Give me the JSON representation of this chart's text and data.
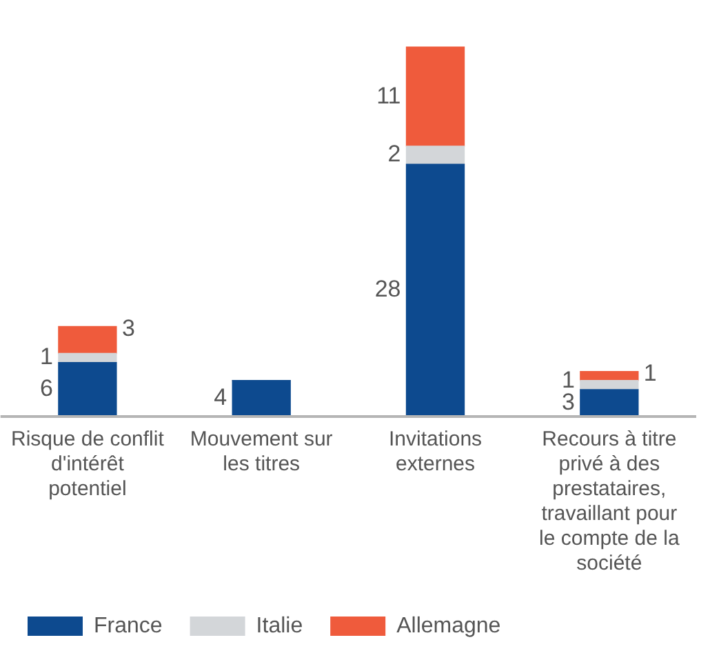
{
  "chart_data": {
    "type": "bar",
    "stacked": true,
    "legend": "bottom",
    "grid": false,
    "categories": [
      "Risque de conflit d'intérêt potentiel",
      "Mouvement sur les titres",
      "Invitations externes",
      "Recours à titre privé à des prestataires, travaillant pour le compte de la société"
    ],
    "series": [
      {
        "name": "France",
        "color": "#0d4a8f",
        "values": [
          6,
          4,
          28,
          3
        ],
        "value_labels": [
          "6",
          "4",
          "28",
          "3"
        ]
      },
      {
        "name": "Italie",
        "color": "#d3d6d9",
        "values": [
          1,
          0,
          2,
          1
        ],
        "value_labels": [
          "1",
          null,
          "2",
          "1"
        ]
      },
      {
        "name": "Allemagne",
        "color": "#ef5b3c",
        "values": [
          3,
          0,
          11,
          1
        ],
        "value_labels": [
          "3",
          null,
          "11",
          "1"
        ]
      }
    ]
  }
}
